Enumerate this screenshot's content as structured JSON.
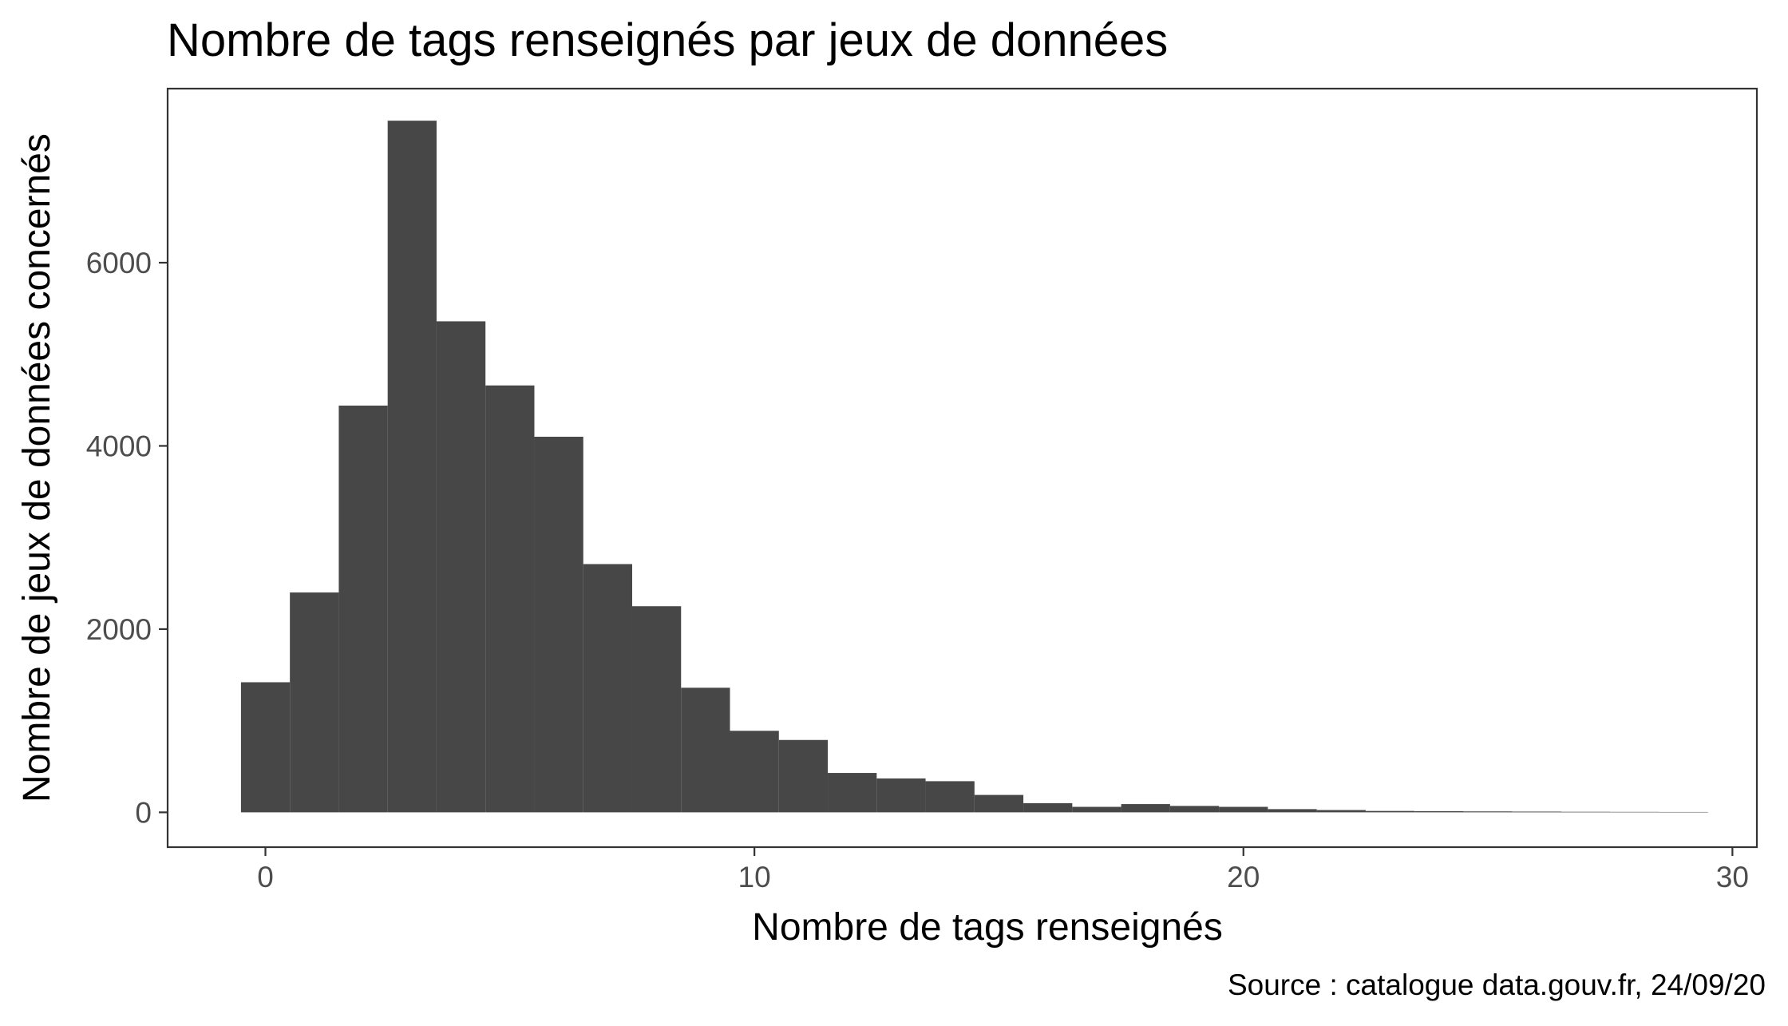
{
  "chart_data": {
    "type": "bar",
    "subtype": "histogram",
    "title": "Nombre de tags renseignés par jeux de données",
    "xlabel": "Nombre de tags renseignés",
    "ylabel": "Nombre de jeux de données concernés",
    "caption": "Source : catalogue data.gouv.fr, 24/09/20",
    "xlim": [
      -2,
      30.5
    ],
    "ylim": [
      -380,
      7900
    ],
    "x_ticks": [
      0,
      10,
      20,
      30
    ],
    "x_tick_labels": [
      "0",
      "10",
      "20",
      "30"
    ],
    "y_ticks": [
      0,
      2000,
      4000,
      6000
    ],
    "y_tick_labels": [
      "0",
      "2000",
      "4000",
      "6000"
    ],
    "bin_width": 1,
    "x": [
      0,
      1,
      2,
      3,
      4,
      5,
      6,
      7,
      8,
      9,
      10,
      11,
      12,
      13,
      14,
      15,
      16,
      17,
      18,
      19,
      20,
      21,
      22,
      23,
      24,
      25,
      26,
      27,
      28,
      29
    ],
    "values": [
      1420,
      2400,
      4440,
      7550,
      5360,
      4660,
      4100,
      2710,
      2250,
      1360,
      890,
      790,
      430,
      370,
      340,
      190,
      100,
      60,
      90,
      70,
      60,
      35,
      25,
      15,
      12,
      10,
      8,
      6,
      5,
      4
    ],
    "bar_color": "#474747",
    "background": "#ffffff",
    "grid": false,
    "legend": "none"
  }
}
